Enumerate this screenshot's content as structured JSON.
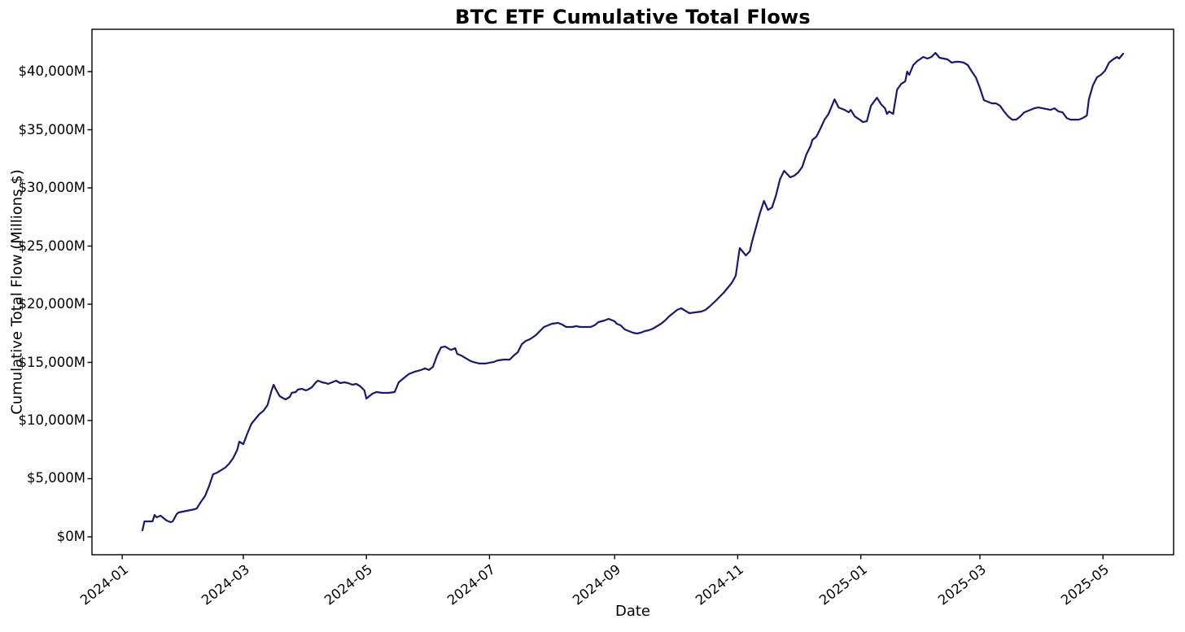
{
  "title": "BTC ETF Cumulative Total Flows",
  "chart_data": {
    "type": "line",
    "title": "BTC ETF Cumulative Total Flows",
    "xlabel": "Date",
    "ylabel": "Cumulative Total Flow (Millions $)",
    "grid": false,
    "legend": null,
    "line_color": "#191970",
    "line_width": 2.2,
    "background": "#ffffff",
    "xlim": [
      "2023-12-17",
      "2025-06-05"
    ],
    "ylim": [
      -1540,
      43640
    ],
    "x_ticks": [
      {
        "date": "2024-01-01",
        "label": "2024-01"
      },
      {
        "date": "2024-03-01",
        "label": "2024-03"
      },
      {
        "date": "2024-05-01",
        "label": "2024-05"
      },
      {
        "date": "2024-07-01",
        "label": "2024-07"
      },
      {
        "date": "2024-09-01",
        "label": "2024-09"
      },
      {
        "date": "2024-11-01",
        "label": "2024-11"
      },
      {
        "date": "2025-01-01",
        "label": "2025-01"
      },
      {
        "date": "2025-03-01",
        "label": "2025-03"
      },
      {
        "date": "2025-05-01",
        "label": "2025-05"
      }
    ],
    "y_ticks": [
      {
        "value": 0,
        "label": "$0M"
      },
      {
        "value": 5000,
        "label": "$5,000M"
      },
      {
        "value": 10000,
        "label": "$10,000M"
      },
      {
        "value": 15000,
        "label": "$15,000M"
      },
      {
        "value": 20000,
        "label": "$20,000M"
      },
      {
        "value": 25000,
        "label": "$25,000M"
      },
      {
        "value": 30000,
        "label": "$30,000M"
      },
      {
        "value": 35000,
        "label": "$35,000M"
      },
      {
        "value": 40000,
        "label": "$40,000M"
      }
    ],
    "series": [
      {
        "name": "Cumulative Total Flow",
        "points": [
          [
            "2024-01-11",
            560
          ],
          [
            "2024-01-12",
            1330
          ],
          [
            "2024-01-16",
            1330
          ],
          [
            "2024-01-17",
            1890
          ],
          [
            "2024-01-18",
            1680
          ],
          [
            "2024-01-20",
            1820
          ],
          [
            "2024-01-21",
            1680
          ],
          [
            "2024-01-23",
            1400
          ],
          [
            "2024-01-25",
            1260
          ],
          [
            "2024-01-26",
            1330
          ],
          [
            "2024-01-28",
            1960
          ],
          [
            "2024-01-29",
            2100
          ],
          [
            "2024-01-31",
            2170
          ],
          [
            "2024-02-02",
            2240
          ],
          [
            "2024-02-04",
            2310
          ],
          [
            "2024-02-06",
            2380
          ],
          [
            "2024-02-07",
            2450
          ],
          [
            "2024-02-09",
            3010
          ],
          [
            "2024-02-11",
            3500
          ],
          [
            "2024-02-13",
            4340
          ],
          [
            "2024-02-15",
            5380
          ],
          [
            "2024-02-17",
            5520
          ],
          [
            "2024-02-19",
            5730
          ],
          [
            "2024-02-21",
            5940
          ],
          [
            "2024-02-23",
            6290
          ],
          [
            "2024-02-25",
            6780
          ],
          [
            "2024-02-27",
            7480
          ],
          [
            "2024-02-28",
            8180
          ],
          [
            "2024-03-01",
            7970
          ],
          [
            "2024-03-03",
            8880
          ],
          [
            "2024-03-04",
            9300
          ],
          [
            "2024-03-05",
            9720
          ],
          [
            "2024-03-07",
            10140
          ],
          [
            "2024-03-09",
            10560
          ],
          [
            "2024-03-11",
            10840
          ],
          [
            "2024-03-13",
            11330
          ],
          [
            "2024-03-15",
            12590
          ],
          [
            "2024-03-16",
            13080
          ],
          [
            "2024-03-17",
            12730
          ],
          [
            "2024-03-19",
            12100
          ],
          [
            "2024-03-21",
            11890
          ],
          [
            "2024-03-22",
            11820
          ],
          [
            "2024-03-24",
            12030
          ],
          [
            "2024-03-25",
            12380
          ],
          [
            "2024-03-27",
            12450
          ],
          [
            "2024-03-28",
            12660
          ],
          [
            "2024-03-30",
            12730
          ],
          [
            "2024-04-01",
            12590
          ],
          [
            "2024-04-02",
            12660
          ],
          [
            "2024-04-04",
            12870
          ],
          [
            "2024-04-06",
            13290
          ],
          [
            "2024-04-07",
            13430
          ],
          [
            "2024-04-09",
            13290
          ],
          [
            "2024-04-11",
            13220
          ],
          [
            "2024-04-12",
            13150
          ],
          [
            "2024-04-14",
            13290
          ],
          [
            "2024-04-16",
            13430
          ],
          [
            "2024-04-18",
            13220
          ],
          [
            "2024-04-20",
            13290
          ],
          [
            "2024-04-22",
            13220
          ],
          [
            "2024-04-24",
            13080
          ],
          [
            "2024-04-26",
            13150
          ],
          [
            "2024-04-28",
            12940
          ],
          [
            "2024-04-30",
            12590
          ],
          [
            "2024-05-01",
            11890
          ],
          [
            "2024-05-04",
            12310
          ],
          [
            "2024-05-06",
            12450
          ],
          [
            "2024-05-09",
            12380
          ],
          [
            "2024-05-12",
            12380
          ],
          [
            "2024-05-15",
            12450
          ],
          [
            "2024-05-17",
            13290
          ],
          [
            "2024-05-20",
            13710
          ],
          [
            "2024-05-22",
            13990
          ],
          [
            "2024-05-25",
            14200
          ],
          [
            "2024-05-28",
            14340
          ],
          [
            "2024-05-30",
            14480
          ],
          [
            "2024-06-01",
            14340
          ],
          [
            "2024-06-03",
            14620
          ],
          [
            "2024-06-05",
            15590
          ],
          [
            "2024-06-07",
            16290
          ],
          [
            "2024-06-09",
            16360
          ],
          [
            "2024-06-11",
            16150
          ],
          [
            "2024-06-12",
            16080
          ],
          [
            "2024-06-14",
            16220
          ],
          [
            "2024-06-15",
            15730
          ],
          [
            "2024-06-17",
            15590
          ],
          [
            "2024-06-19",
            15380
          ],
          [
            "2024-06-21",
            15170
          ],
          [
            "2024-06-23",
            15030
          ],
          [
            "2024-06-26",
            14900
          ],
          [
            "2024-06-29",
            14900
          ],
          [
            "2024-07-01",
            14970
          ],
          [
            "2024-07-03",
            15030
          ],
          [
            "2024-07-05",
            15170
          ],
          [
            "2024-07-08",
            15240
          ],
          [
            "2024-07-11",
            15240
          ],
          [
            "2024-07-13",
            15590
          ],
          [
            "2024-07-15",
            15870
          ],
          [
            "2024-07-17",
            16570
          ],
          [
            "2024-07-19",
            16850
          ],
          [
            "2024-07-21",
            16990
          ],
          [
            "2024-07-24",
            17340
          ],
          [
            "2024-07-26",
            17690
          ],
          [
            "2024-07-28",
            18040
          ],
          [
            "2024-07-30",
            18180
          ],
          [
            "2024-08-01",
            18320
          ],
          [
            "2024-08-04",
            18390
          ],
          [
            "2024-08-06",
            18250
          ],
          [
            "2024-08-08",
            18040
          ],
          [
            "2024-08-11",
            18040
          ],
          [
            "2024-08-13",
            18110
          ],
          [
            "2024-08-15",
            18040
          ],
          [
            "2024-08-18",
            18040
          ],
          [
            "2024-08-20",
            18040
          ],
          [
            "2024-08-22",
            18180
          ],
          [
            "2024-08-24",
            18460
          ],
          [
            "2024-08-27",
            18600
          ],
          [
            "2024-08-29",
            18740
          ],
          [
            "2024-09-01",
            18530
          ],
          [
            "2024-09-02",
            18320
          ],
          [
            "2024-09-04",
            18180
          ],
          [
            "2024-09-06",
            17830
          ],
          [
            "2024-09-08",
            17690
          ],
          [
            "2024-09-10",
            17550
          ],
          [
            "2024-09-12",
            17480
          ],
          [
            "2024-09-14",
            17550
          ],
          [
            "2024-09-16",
            17690
          ],
          [
            "2024-09-18",
            17760
          ],
          [
            "2024-09-20",
            17900
          ],
          [
            "2024-09-22",
            18110
          ],
          [
            "2024-09-24",
            18320
          ],
          [
            "2024-09-26",
            18600
          ],
          [
            "2024-09-28",
            18950
          ],
          [
            "2024-09-30",
            19230
          ],
          [
            "2024-10-02",
            19510
          ],
          [
            "2024-10-04",
            19650
          ],
          [
            "2024-10-08",
            19230
          ],
          [
            "2024-10-11",
            19300
          ],
          [
            "2024-10-14",
            19370
          ],
          [
            "2024-10-16",
            19510
          ],
          [
            "2024-10-18",
            19790
          ],
          [
            "2024-10-21",
            20280
          ],
          [
            "2024-10-23",
            20630
          ],
          [
            "2024-10-25",
            20980
          ],
          [
            "2024-10-27",
            21400
          ],
          [
            "2024-10-29",
            21820
          ],
          [
            "2024-10-31",
            22450
          ],
          [
            "2024-11-01",
            23640
          ],
          [
            "2024-11-02",
            24830
          ],
          [
            "2024-11-04",
            24410
          ],
          [
            "2024-11-05",
            24200
          ],
          [
            "2024-11-07",
            24550
          ],
          [
            "2024-11-08",
            25320
          ],
          [
            "2024-11-10",
            26570
          ],
          [
            "2024-11-12",
            27830
          ],
          [
            "2024-11-14",
            28880
          ],
          [
            "2024-11-16",
            28110
          ],
          [
            "2024-11-18",
            28320
          ],
          [
            "2024-11-20",
            29370
          ],
          [
            "2024-11-22",
            30770
          ],
          [
            "2024-11-24",
            31470
          ],
          [
            "2024-11-27",
            30910
          ],
          [
            "2024-11-29",
            31050
          ],
          [
            "2024-12-01",
            31330
          ],
          [
            "2024-12-03",
            31820
          ],
          [
            "2024-12-05",
            32870
          ],
          [
            "2024-12-07",
            33570
          ],
          [
            "2024-12-08",
            34130
          ],
          [
            "2024-12-10",
            34410
          ],
          [
            "2024-12-12",
            35110
          ],
          [
            "2024-12-14",
            35870
          ],
          [
            "2024-12-16",
            36360
          ],
          [
            "2024-12-19",
            37620
          ],
          [
            "2024-12-21",
            36920
          ],
          [
            "2024-12-24",
            36710
          ],
          [
            "2024-12-26",
            36500
          ],
          [
            "2024-12-27",
            36710
          ],
          [
            "2024-12-29",
            36150
          ],
          [
            "2025-01-01",
            35800
          ],
          [
            "2025-01-02",
            35660
          ],
          [
            "2025-01-04",
            35730
          ],
          [
            "2025-01-06",
            37060
          ],
          [
            "2025-01-09",
            37760
          ],
          [
            "2025-01-11",
            37200
          ],
          [
            "2025-01-13",
            36850
          ],
          [
            "2025-01-14",
            36360
          ],
          [
            "2025-01-15",
            36570
          ],
          [
            "2025-01-17",
            36360
          ],
          [
            "2025-01-19",
            38460
          ],
          [
            "2025-01-21",
            38950
          ],
          [
            "2025-01-23",
            39160
          ],
          [
            "2025-01-24",
            40000
          ],
          [
            "2025-01-25",
            39720
          ],
          [
            "2025-01-27",
            40560
          ],
          [
            "2025-01-29",
            40910
          ],
          [
            "2025-02-01",
            41260
          ],
          [
            "2025-02-03",
            41120
          ],
          [
            "2025-02-05",
            41260
          ],
          [
            "2025-02-07",
            41610
          ],
          [
            "2025-02-09",
            41190
          ],
          [
            "2025-02-11",
            41120
          ],
          [
            "2025-02-13",
            41050
          ],
          [
            "2025-02-15",
            40770
          ],
          [
            "2025-02-17",
            40840
          ],
          [
            "2025-02-19",
            40840
          ],
          [
            "2025-02-21",
            40770
          ],
          [
            "2025-02-23",
            40560
          ],
          [
            "2025-02-25",
            40000
          ],
          [
            "2025-02-27",
            39510
          ],
          [
            "2025-03-01",
            38600
          ],
          [
            "2025-03-03",
            37550
          ],
          [
            "2025-03-05",
            37410
          ],
          [
            "2025-03-07",
            37270
          ],
          [
            "2025-03-09",
            37270
          ],
          [
            "2025-03-11",
            37060
          ],
          [
            "2025-03-13",
            36570
          ],
          [
            "2025-03-15",
            36150
          ],
          [
            "2025-03-17",
            35870
          ],
          [
            "2025-03-19",
            35870
          ],
          [
            "2025-03-21",
            36150
          ],
          [
            "2025-03-23",
            36500
          ],
          [
            "2025-03-26",
            36710
          ],
          [
            "2025-03-28",
            36850
          ],
          [
            "2025-03-30",
            36920
          ],
          [
            "2025-04-01",
            36850
          ],
          [
            "2025-04-03",
            36780
          ],
          [
            "2025-04-05",
            36710
          ],
          [
            "2025-04-07",
            36850
          ],
          [
            "2025-04-09",
            36570
          ],
          [
            "2025-04-11",
            36500
          ],
          [
            "2025-04-13",
            36010
          ],
          [
            "2025-04-15",
            35870
          ],
          [
            "2025-04-17",
            35870
          ],
          [
            "2025-04-19",
            35870
          ],
          [
            "2025-04-21",
            36010
          ],
          [
            "2025-04-23",
            36220
          ],
          [
            "2025-04-24",
            37620
          ],
          [
            "2025-04-26",
            38810
          ],
          [
            "2025-04-28",
            39510
          ],
          [
            "2025-04-30",
            39720
          ],
          [
            "2025-05-02",
            40070
          ],
          [
            "2025-05-04",
            40770
          ],
          [
            "2025-05-06",
            41050
          ],
          [
            "2025-05-08",
            41260
          ],
          [
            "2025-05-09",
            41120
          ],
          [
            "2025-05-11",
            41540
          ]
        ]
      }
    ]
  }
}
